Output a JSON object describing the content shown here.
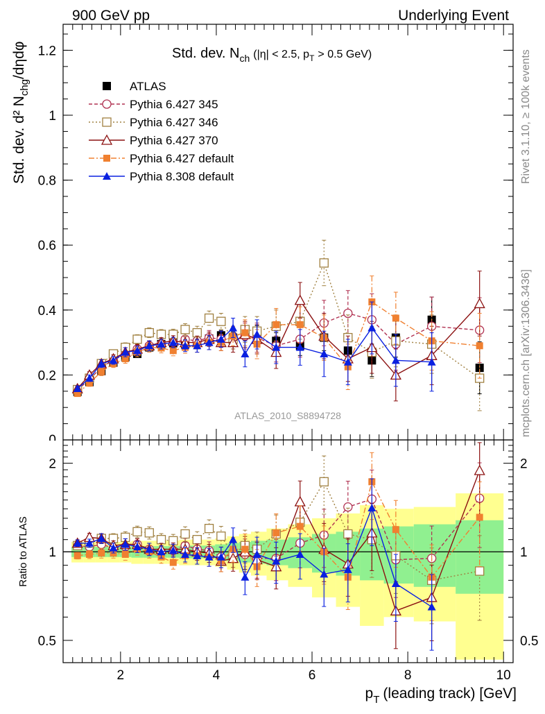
{
  "header": {
    "left": "900 GeV pp",
    "right": "Underlying Event"
  },
  "side_labels": {
    "top": "Rivet 3.1.10, ≥ 100k events",
    "bottom": "mcplots.cern.ch [arXiv:1306.3436]"
  },
  "colors": {
    "atlas": "#000000",
    "p345": "#b03050",
    "p346": "#a08040",
    "p370": "#8b1010",
    "p6def": "#f08030",
    "p8def": "#0a20e0",
    "band_inner": "#90f090",
    "band_outer": "#ffff90"
  },
  "chart_data": [
    {
      "type": "scatter",
      "title_main": "Std. dev. N",
      "title_sub": "ch",
      "title_rest": "(|η| < 2.5, p",
      "title_sub2": "T",
      "title_end": "> 0.5 GeV)",
      "ylabel": "Std. dev. d² N",
      "ylabel_sub": "chg",
      "ylabel_end": "/dηdφ",
      "analysis_tag": "ATLAS_2010_S8894728",
      "xlim": [
        0.8,
        10.2
      ],
      "ylim": [
        0,
        1.28
      ],
      "yticks": [
        "0.2",
        "0.4",
        "0.6",
        "0.8",
        "1",
        "1.2"
      ],
      "ytick_values": [
        0.2,
        0.4,
        0.6,
        0.8,
        1.0,
        1.2
      ],
      "x": [
        1.1,
        1.35,
        1.6,
        1.85,
        2.1,
        2.35,
        2.6,
        2.85,
        3.1,
        3.35,
        3.6,
        3.85,
        4.1,
        4.35,
        4.6,
        4.85,
        5.25,
        5.75,
        6.25,
        6.75,
        7.25,
        7.75,
        8.5,
        9.5
      ],
      "legend": [
        "ATLAS",
        "Pythia 6.427 345",
        "Pythia 6.427 346",
        "Pythia 6.427 370",
        "Pythia 6.427 default",
        "Pythia 8.308 default"
      ],
      "series": [
        {
          "name": "ATLAS",
          "values": [
            0.148,
            0.178,
            0.212,
            0.238,
            0.255,
            0.265,
            0.285,
            0.295,
            0.298,
            0.295,
            0.3,
            0.312,
            0.322,
            0.315,
            0.325,
            0.33,
            0.305,
            0.29,
            0.315,
            0.275,
            0.245,
            0.315,
            0.37,
            0.222
          ]
        },
        {
          "name": "Pythia 6.427 345",
          "values": [
            0.155,
            0.185,
            0.225,
            0.245,
            0.265,
            0.28,
            0.29,
            0.295,
            0.3,
            0.31,
            0.305,
            0.315,
            0.31,
            0.31,
            0.32,
            0.315,
            0.29,
            0.31,
            0.36,
            0.39,
            0.37,
            0.295,
            0.35,
            0.338
          ]
        },
        {
          "name": "Pythia 6.427 346",
          "values": [
            0.155,
            0.19,
            0.235,
            0.265,
            0.285,
            0.31,
            0.33,
            0.325,
            0.325,
            0.34,
            0.33,
            0.375,
            0.365,
            0.31,
            0.34,
            0.335,
            0.35,
            0.365,
            0.545,
            0.315,
            0.27,
            0.305,
            0.295,
            0.19
          ]
        },
        {
          "name": "Pythia 6.427 370",
          "values": [
            0.158,
            0.2,
            0.235,
            0.25,
            0.27,
            0.28,
            0.29,
            0.3,
            0.305,
            0.3,
            0.3,
            0.31,
            0.3,
            0.3,
            0.325,
            0.31,
            0.27,
            0.43,
            0.32,
            0.25,
            0.285,
            0.2,
            0.26,
            0.42
          ]
        },
        {
          "name": "Pythia 6.427 default",
          "values": [
            0.143,
            0.175,
            0.21,
            0.235,
            0.25,
            0.27,
            0.285,
            0.283,
            0.275,
            0.285,
            0.29,
            0.3,
            0.3,
            0.32,
            0.33,
            0.295,
            0.355,
            0.355,
            0.315,
            0.225,
            0.425,
            0.375,
            0.305,
            0.29
          ]
        },
        {
          "name": "Pythia 8.308 default",
          "values": [
            0.158,
            0.19,
            0.235,
            0.245,
            0.27,
            0.275,
            0.29,
            0.295,
            0.3,
            0.29,
            0.29,
            0.3,
            0.31,
            0.345,
            0.265,
            0.325,
            0.285,
            0.285,
            0.265,
            0.24,
            0.345,
            0.245,
            0.24,
            null
          ]
        }
      ],
      "errors": {
        "ATLAS": [
          0.006,
          0.007,
          0.008,
          0.008,
          0.009,
          0.01,
          0.01,
          0.01,
          0.01,
          0.012,
          0.012,
          0.014,
          0.015,
          0.018,
          0.02,
          0.022,
          0.025,
          0.03,
          0.04,
          0.045,
          0.05,
          0.06,
          0.07,
          0.08
        ],
        "MC": [
          0.008,
          0.01,
          0.012,
          0.012,
          0.014,
          0.014,
          0.015,
          0.015,
          0.016,
          0.018,
          0.02,
          0.022,
          0.025,
          0.03,
          0.04,
          0.045,
          0.05,
          0.055,
          0.07,
          0.07,
          0.08,
          0.08,
          0.09,
          0.1
        ]
      }
    },
    {
      "type": "scatter",
      "ylabel": "Ratio to ATLAS",
      "xlabel": "p",
      "xlabel_sub": "T",
      "xlabel_end": "(leading track) [GeV]",
      "xlim": [
        0.8,
        10.2
      ],
      "xticks": [
        "2",
        "4",
        "6",
        "8",
        "10"
      ],
      "xtick_values": [
        2,
        4,
        6,
        8,
        10
      ],
      "ylim": [
        0.42,
        2.4
      ],
      "yticks": [
        "0.5",
        "1",
        "2"
      ],
      "ytick_values": [
        0.5,
        1,
        2
      ],
      "band_inner_halfwidth": [
        0.04,
        0.04,
        0.04,
        0.04,
        0.04,
        0.045,
        0.045,
        0.045,
        0.045,
        0.05,
        0.05,
        0.05,
        0.06,
        0.07,
        0.08,
        0.09,
        0.1,
        0.12,
        0.15,
        0.17,
        0.2,
        0.22,
        0.24,
        0.28
      ],
      "band_outer_halfwidth": [
        0.08,
        0.08,
        0.08,
        0.08,
        0.08,
        0.09,
        0.09,
        0.09,
        0.09,
        0.1,
        0.1,
        0.1,
        0.11,
        0.13,
        0.15,
        0.17,
        0.2,
        0.24,
        0.3,
        0.35,
        0.44,
        0.4,
        0.42,
        0.58
      ],
      "series": [
        {
          "name": "Pythia 6.427 345",
          "values": [
            1.05,
            1.04,
            1.06,
            1.03,
            1.04,
            1.06,
            1.02,
            1.0,
            1.01,
            1.05,
            1.02,
            1.01,
            0.96,
            0.98,
            0.98,
            0.95,
            0.95,
            1.07,
            1.14,
            1.42,
            1.51,
            0.94,
            0.95,
            1.52
          ]
        },
        {
          "name": "Pythia 6.427 346",
          "values": [
            1.05,
            1.07,
            1.11,
            1.11,
            1.12,
            1.17,
            1.16,
            1.1,
            1.09,
            1.15,
            1.1,
            1.2,
            1.13,
            0.98,
            1.05,
            1.02,
            1.15,
            1.26,
            1.73,
            1.15,
            1.1,
            0.97,
            0.8,
            0.86
          ]
        },
        {
          "name": "Pythia 6.427 370",
          "values": [
            1.07,
            1.12,
            1.11,
            1.05,
            1.06,
            1.06,
            1.02,
            1.02,
            1.02,
            1.02,
            1.0,
            0.99,
            0.93,
            0.95,
            1.0,
            0.94,
            0.89,
            1.48,
            1.02,
            0.91,
            1.16,
            0.63,
            0.7,
            1.89
          ]
        },
        {
          "name": "Pythia 6.427 default",
          "values": [
            0.97,
            0.98,
            0.99,
            0.99,
            0.98,
            1.02,
            1.0,
            0.96,
            0.92,
            0.97,
            0.97,
            0.96,
            0.93,
            1.02,
            1.02,
            0.89,
            1.16,
            1.22,
            1.0,
            0.82,
            1.73,
            1.19,
            0.82,
            1.31
          ]
        },
        {
          "name": "Pythia 8.308 default",
          "values": [
            1.07,
            1.07,
            1.11,
            1.03,
            1.06,
            1.04,
            1.02,
            1.0,
            1.01,
            0.98,
            0.97,
            0.96,
            0.96,
            1.1,
            0.82,
            0.98,
            0.93,
            0.98,
            0.84,
            0.87,
            1.41,
            0.78,
            0.65,
            null
          ]
        }
      ]
    }
  ]
}
